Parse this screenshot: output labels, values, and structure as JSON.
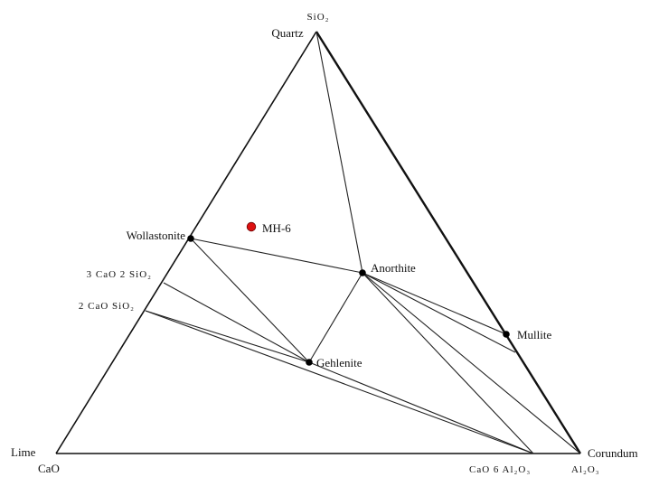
{
  "diagram": {
    "vertices": {
      "top": {
        "formula": "SiO₂",
        "mineral": "Quartz"
      },
      "left": {
        "mineral": "Lime",
        "formula": "CaO"
      },
      "right": {
        "mineral": "Corundum",
        "formula": "Al₂O₃"
      }
    },
    "phases": {
      "wollastonite": "Wollastonite",
      "anorthite": "Anorthite",
      "gehlenite": "Gehlenite",
      "mullite": "Mullite",
      "c3s2": "3 CaO 2 SiO₂",
      "c2s": "2 CaO SiO₂",
      "ca6": "CaO 6 Al₂O₃"
    },
    "sample": {
      "label": "MH-6",
      "color": "#dd1111"
    },
    "colors": {
      "lines": "#111111",
      "points": "#000000"
    }
  }
}
